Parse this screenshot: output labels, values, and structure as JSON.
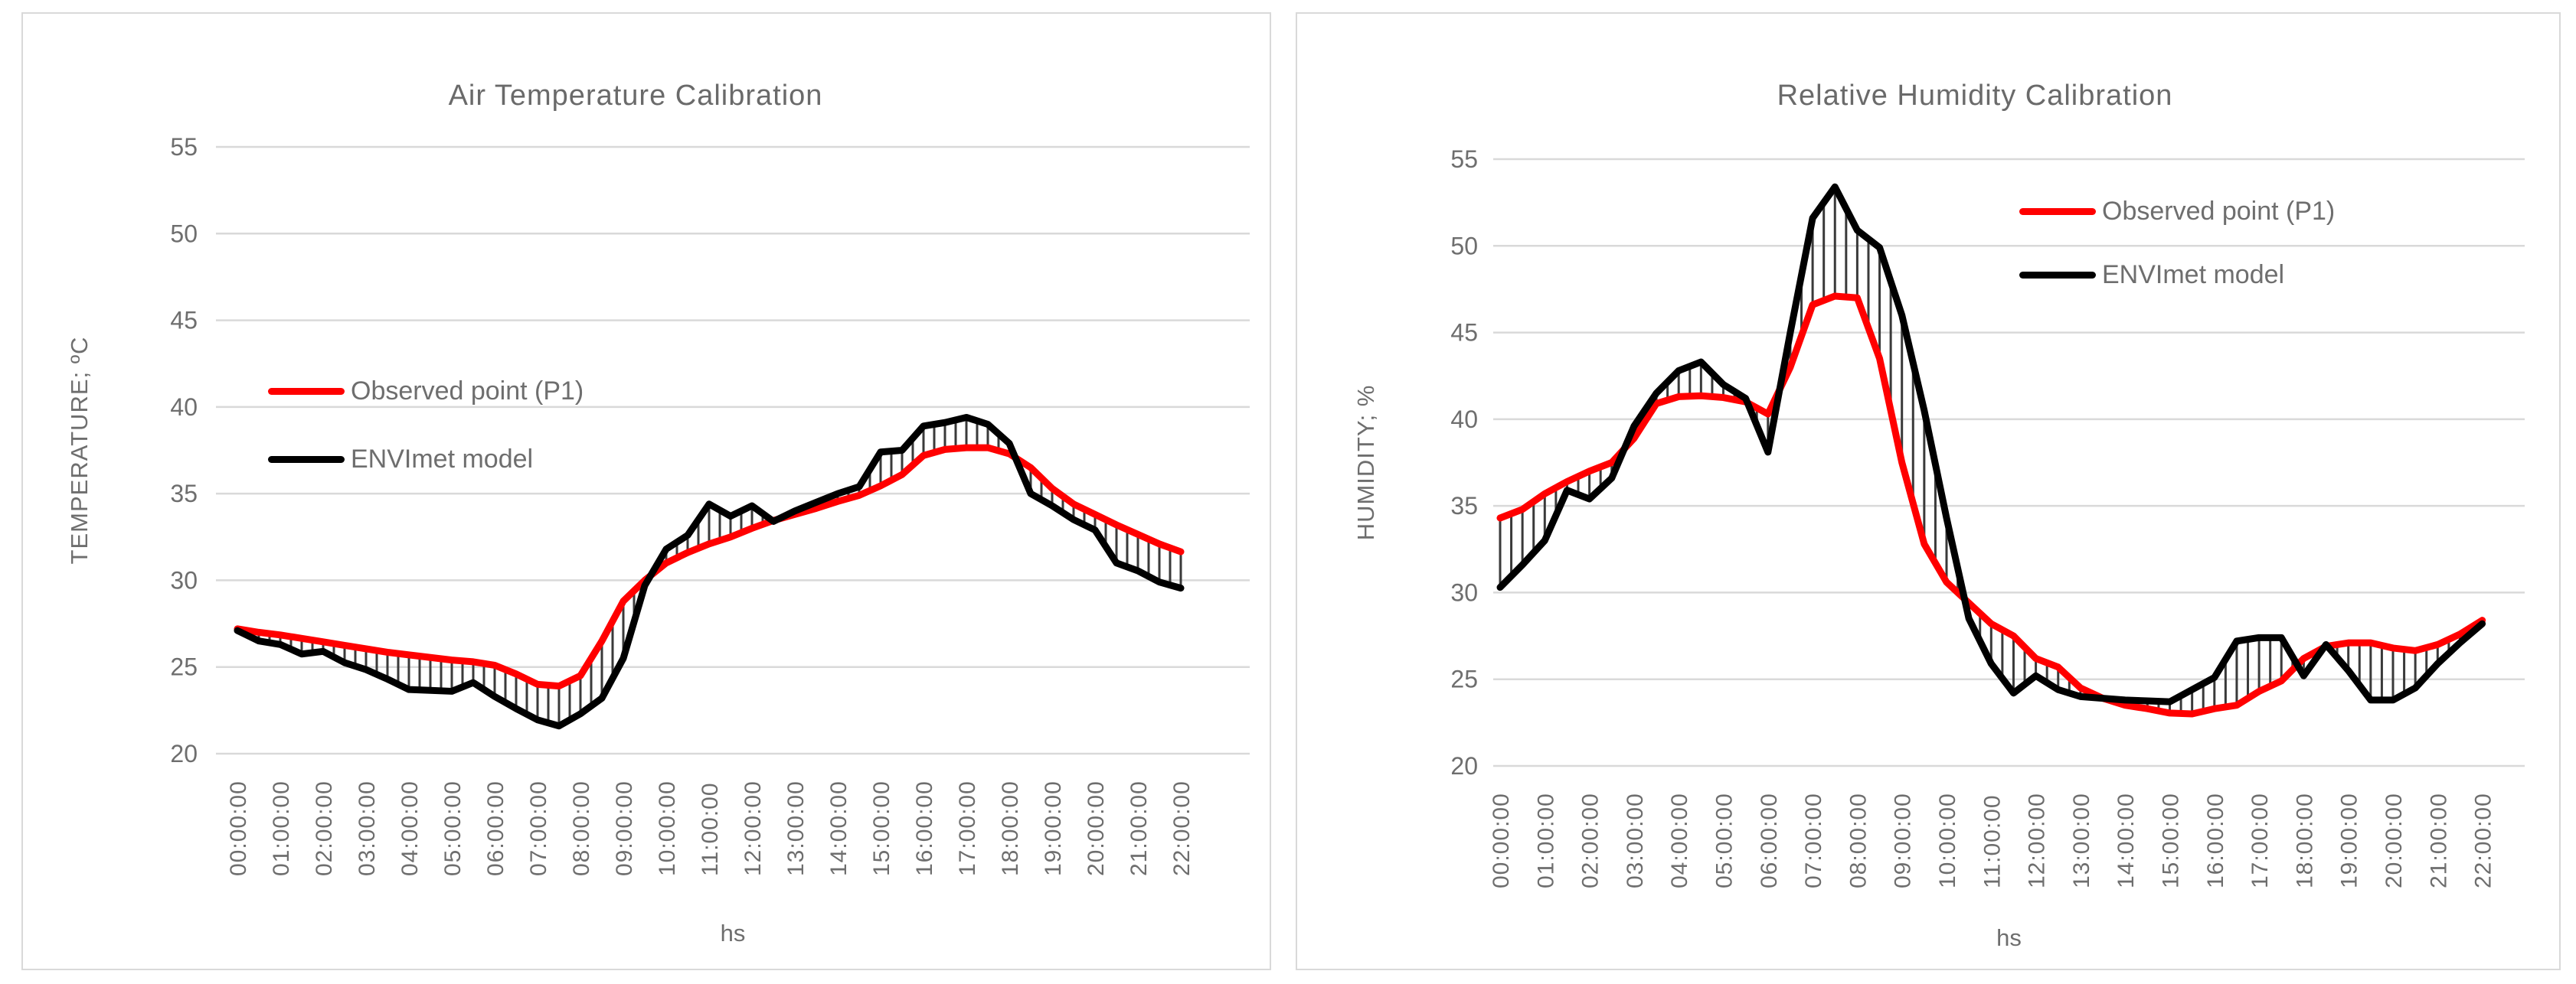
{
  "page": {
    "background": "#ffffff"
  },
  "shared": {
    "colors": {
      "observed_line": "#ff0000",
      "model_line": "#000000",
      "connector_lines": "#3a3a3a",
      "gridline": "#d9d9d9",
      "text_gray": "#6e6e6e",
      "panel_border": "#d9d9d9"
    },
    "x_axis_label": "hs",
    "x_tick_labels": [
      "00:00:00",
      "01:00:00",
      "02:00:00",
      "03:00:00",
      "04:00:00",
      "05:00:00",
      "06:00:00",
      "07:00:00",
      "08:00:00",
      "09:00:00",
      "10:00:00",
      "11:00:00",
      "12:00:00",
      "13:00:00",
      "14:00:00",
      "15:00:00",
      "16:00:00",
      "17:00:00",
      "18:00:00",
      "19:00:00",
      "20:00:00",
      "21:00:00",
      "22:00:00"
    ]
  },
  "charts": [
    {
      "title": "Air Temperature Calibration",
      "y_axis_label": "TEMPERATURE;  ºC",
      "x_axis_label": "hs",
      "legend": [
        {
          "label": "Observed point (P1)",
          "color": "#ff0000"
        },
        {
          "label": "ENVImet model",
          "color": "#000000"
        }
      ],
      "chart_data": {
        "type": "line",
        "title": "Air Temperature Calibration",
        "xlabel": "hs",
        "ylabel": "TEMPERATURE;  ºC",
        "ylim": [
          20,
          55
        ],
        "yticks": [
          20,
          25,
          30,
          35,
          40,
          45,
          50,
          55
        ],
        "grid": "horizontal",
        "legend_position": "inside-left-middle",
        "x_tick_labels": [
          "00:00:00",
          "01:00:00",
          "02:00:00",
          "03:00:00",
          "04:00:00",
          "05:00:00",
          "06:00:00",
          "07:00:00",
          "08:00:00",
          "09:00:00",
          "10:00:00",
          "11:00:00",
          "12:00:00",
          "13:00:00",
          "14:00:00",
          "15:00:00",
          "16:00:00",
          "17:00:00",
          "18:00:00",
          "19:00:00",
          "20:00:00",
          "21:00:00",
          "22:00:00"
        ],
        "x_hours": [
          0,
          0.5,
          1,
          1.5,
          2,
          2.5,
          3,
          3.5,
          4,
          4.5,
          5,
          5.5,
          6,
          6.5,
          7,
          7.5,
          8,
          8.5,
          9,
          9.5,
          10,
          10.5,
          11,
          11.5,
          12,
          12.5,
          13,
          13.5,
          14,
          14.5,
          15,
          15.5,
          16,
          16.5,
          17,
          17.5,
          18,
          18.5,
          19,
          19.5,
          20,
          20.5,
          21,
          21.5,
          22
        ],
        "series": [
          {
            "name": "Observed point (P1)",
            "color": "#ff0000",
            "values": [
              27.2,
              27.0,
              26.85,
              26.65,
              26.45,
              26.25,
              26.05,
              25.85,
              25.7,
              25.55,
              25.4,
              25.3,
              25.1,
              24.6,
              24.0,
              23.9,
              24.5,
              26.5,
              28.8,
              30.0,
              31.0,
              31.6,
              32.1,
              32.5,
              33.0,
              33.45,
              33.8,
              34.15,
              34.55,
              34.9,
              35.45,
              36.1,
              37.2,
              37.55,
              37.65,
              37.65,
              37.3,
              36.5,
              35.3,
              34.4,
              33.8,
              33.2,
              32.65,
              32.1,
              31.65
            ]
          },
          {
            "name": "ENVImet model",
            "color": "#000000",
            "values": [
              27.1,
              26.5,
              26.3,
              25.75,
              25.9,
              25.25,
              24.85,
              24.3,
              23.7,
              23.65,
              23.6,
              24.1,
              23.3,
              22.6,
              21.95,
              21.6,
              22.3,
              23.2,
              25.5,
              29.7,
              31.8,
              32.6,
              34.4,
              33.7,
              34.3,
              33.4,
              34.0,
              34.5,
              35.0,
              35.4,
              37.4,
              37.5,
              38.9,
              39.1,
              39.4,
              39.0,
              37.9,
              35.0,
              34.3,
              33.5,
              32.9,
              31.0,
              30.55,
              29.9,
              29.55
            ]
          }
        ],
        "connector_lines": {
          "show": true,
          "color": "#3a3a3a",
          "description": "vertical high-low lines between the two series at each data point"
        }
      }
    },
    {
      "title": "Relative Humidity Calibration",
      "y_axis_label": "HUMIDITY;  %",
      "x_axis_label": "hs",
      "legend": [
        {
          "label": "Observed point (P1)",
          "color": "#ff0000"
        },
        {
          "label": "ENVImet model",
          "color": "#000000"
        }
      ],
      "chart_data": {
        "type": "line",
        "title": "Relative Humidity Calibration",
        "xlabel": "hs",
        "ylabel": "HUMIDITY;  %",
        "ylim": [
          20,
          55
        ],
        "yticks": [
          20,
          25,
          30,
          35,
          40,
          45,
          50,
          55
        ],
        "grid": "horizontal",
        "legend_position": "inside-top-right",
        "x_tick_labels": [
          "00:00:00",
          "01:00:00",
          "02:00:00",
          "03:00:00",
          "04:00:00",
          "05:00:00",
          "06:00:00",
          "07:00:00",
          "08:00:00",
          "09:00:00",
          "10:00:00",
          "11:00:00",
          "12:00:00",
          "13:00:00",
          "14:00:00",
          "15:00:00",
          "16:00:00",
          "17:00:00",
          "18:00:00",
          "19:00:00",
          "20:00:00",
          "21:00:00",
          "22:00:00"
        ],
        "x_hours": [
          0,
          0.5,
          1,
          1.5,
          2,
          2.5,
          3,
          3.5,
          4,
          4.5,
          5,
          5.5,
          6,
          6.5,
          7,
          7.5,
          8,
          8.5,
          9,
          9.5,
          10,
          10.5,
          11,
          11.5,
          12,
          12.5,
          13,
          13.5,
          14,
          14.5,
          15,
          15.5,
          16,
          16.5,
          17,
          17.5,
          18,
          18.5,
          19,
          19.5,
          20,
          20.5,
          21,
          21.5,
          22
        ],
        "series": [
          {
            "name": "Observed point (P1)",
            "color": "#ff0000",
            "values": [
              34.3,
              34.8,
              35.7,
              36.4,
              37.0,
              37.5,
              38.9,
              40.9,
              41.3,
              41.35,
              41.25,
              41.0,
              40.3,
              43.0,
              46.6,
              47.1,
              47.0,
              43.5,
              37.5,
              32.8,
              30.6,
              29.4,
              28.2,
              27.5,
              26.2,
              25.7,
              24.5,
              23.9,
              23.5,
              23.3,
              23.05,
              23.0,
              23.3,
              23.5,
              24.3,
              24.9,
              26.2,
              26.9,
              27.1,
              27.1,
              26.8,
              26.65,
              27.0,
              27.6,
              28.4
            ]
          },
          {
            "name": "ENVImet model",
            "color": "#000000",
            "values": [
              30.3,
              31.6,
              33.0,
              35.9,
              35.4,
              36.6,
              39.6,
              41.5,
              42.8,
              43.3,
              42.0,
              41.2,
              38.1,
              45.0,
              51.6,
              53.4,
              50.9,
              49.9,
              46.0,
              40.5,
              34.3,
              28.5,
              25.9,
              24.2,
              25.2,
              24.4,
              24.0,
              23.9,
              23.8,
              23.75,
              23.7,
              24.4,
              25.1,
              27.2,
              27.4,
              27.4,
              25.2,
              27.0,
              25.5,
              23.8,
              23.8,
              24.5,
              25.9,
              27.1,
              28.2
            ]
          }
        ],
        "connector_lines": {
          "show": true,
          "color": "#3a3a3a",
          "description": "vertical high-low lines between the two series at each data point"
        }
      }
    }
  ]
}
